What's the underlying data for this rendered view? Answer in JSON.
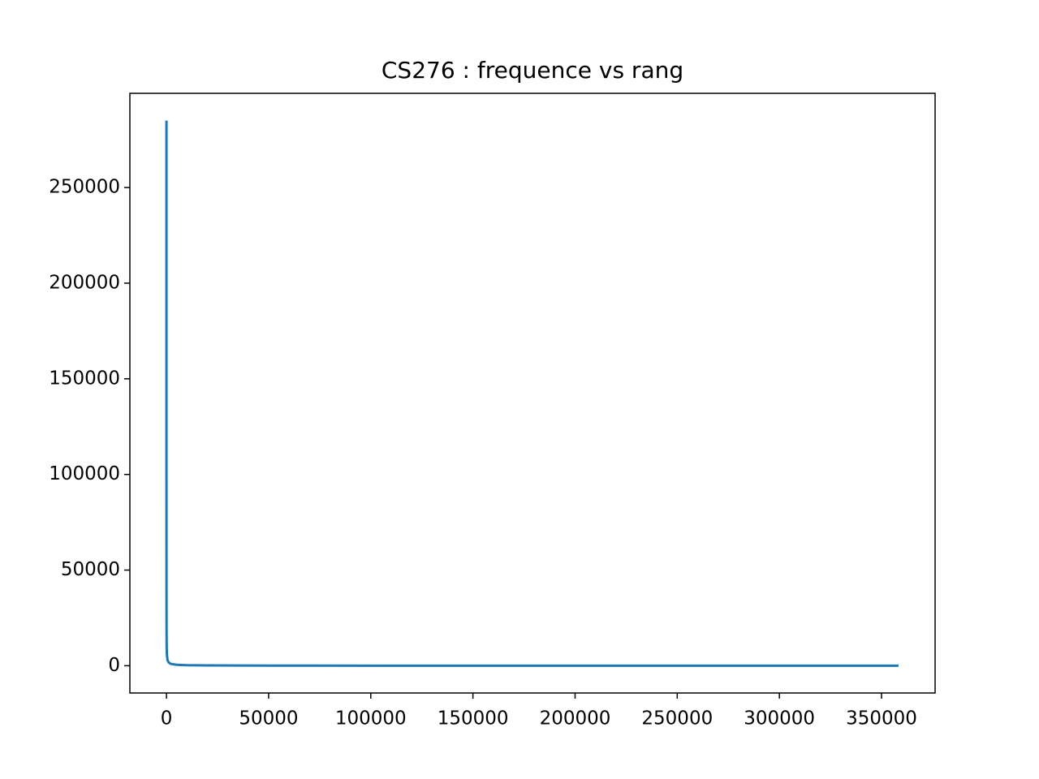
{
  "chart_data": {
    "type": "line",
    "title": "CS276 : frequence vs rang",
    "x": [
      1,
      2,
      3,
      5,
      10,
      20,
      50,
      100,
      200,
      500,
      1000,
      2000,
      5000,
      10000,
      20000,
      50000,
      100000,
      200000,
      358300
    ],
    "series": [
      {
        "color": "#1f77b4",
        "values": [
          285000,
          180000,
          140000,
          100000,
          60000,
          35000,
          18000,
          10000,
          6000,
          3000,
          1800,
          1000,
          500,
          280,
          150,
          60,
          30,
          15,
          1
        ]
      }
    ],
    "xlim": [
      -17914,
      376215
    ],
    "ylim": [
      -14249,
      299250
    ],
    "xticks": [
      0,
      50000,
      100000,
      150000,
      200000,
      250000,
      300000,
      350000
    ],
    "yticks": [
      0,
      50000,
      100000,
      150000,
      200000,
      250000
    ]
  }
}
